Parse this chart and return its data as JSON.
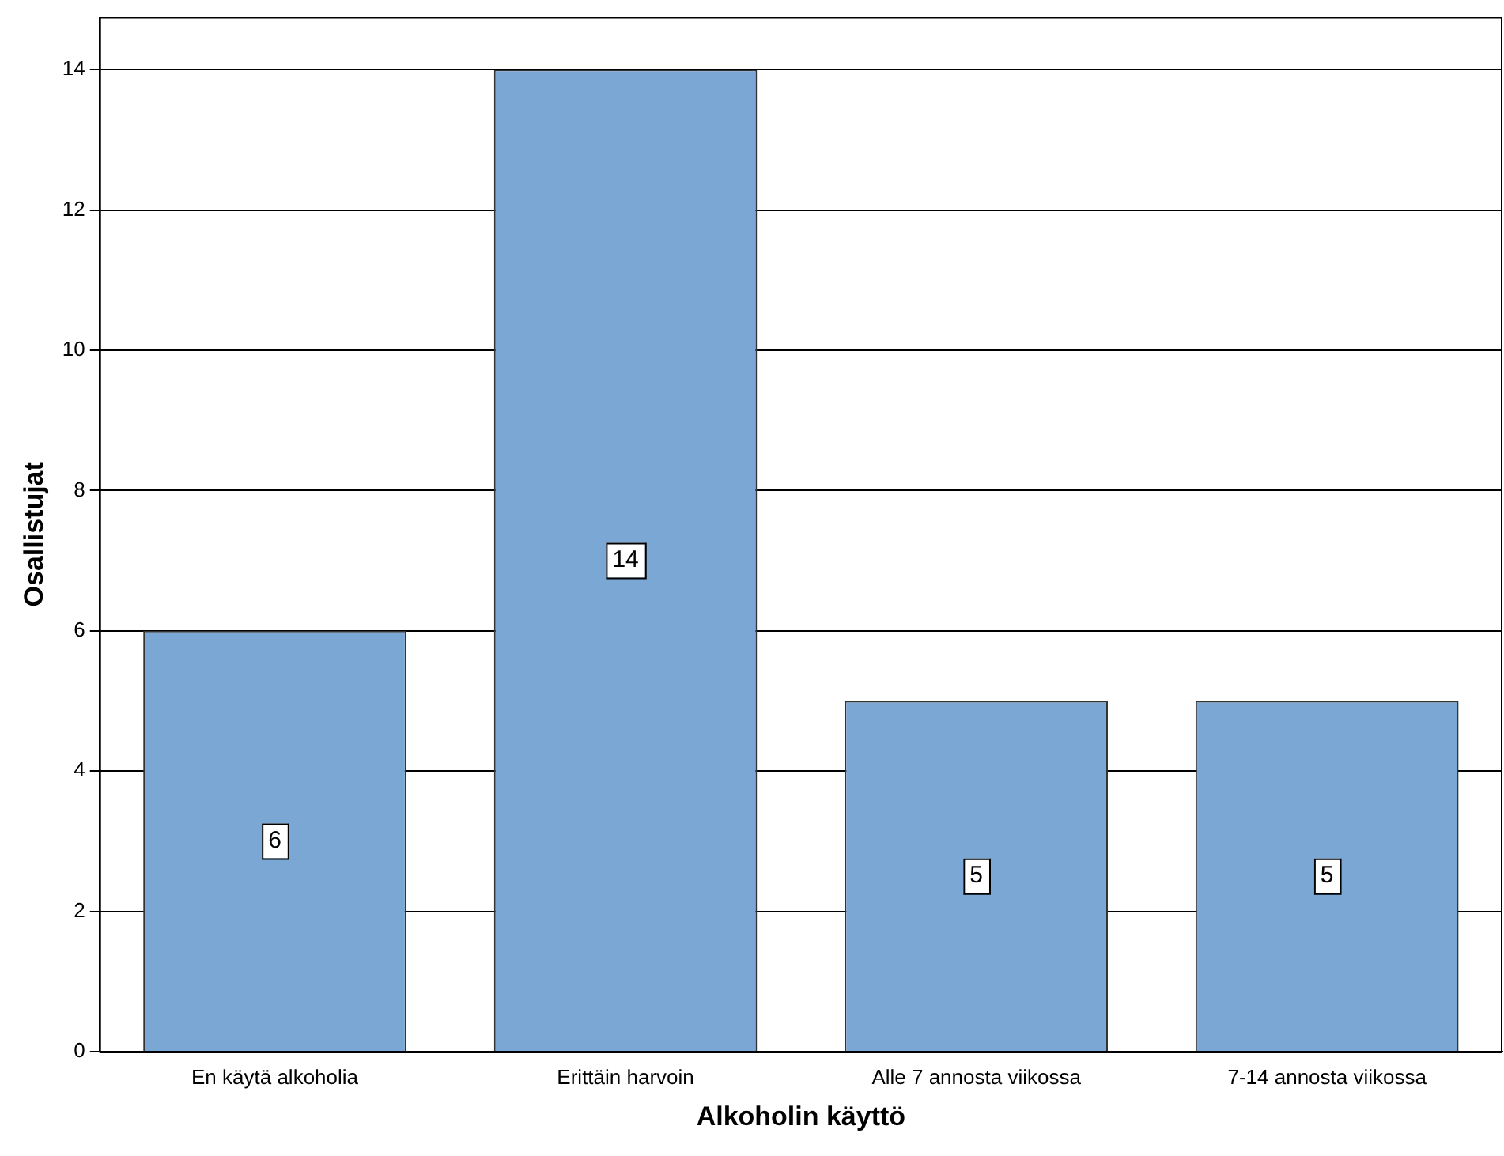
{
  "chart_data": {
    "type": "bar",
    "xlabel": "Alkoholin käyttö",
    "ylabel": "Osallistujat",
    "categories": [
      "En käytä alkoholia",
      "Erittäin harvoin",
      "Alle 7 annosta viikossa",
      "7-14 annosta viikossa"
    ],
    "values": [
      6,
      14,
      5,
      5
    ],
    "color": "#7ba7d5",
    "ylim": [
      0,
      14.75
    ],
    "yticks": [
      0,
      2,
      4,
      6,
      8,
      10,
      12,
      14
    ],
    "grid": "y",
    "data_labels": true,
    "legend": false
  }
}
